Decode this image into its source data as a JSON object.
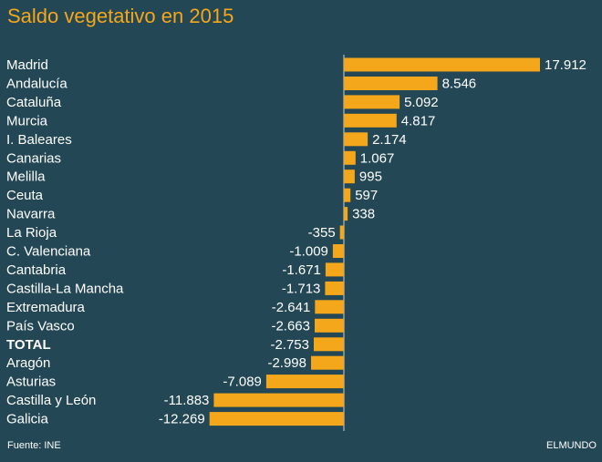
{
  "chart_data": {
    "type": "bar",
    "orientation": "horizontal",
    "title": "Saldo vegetativo en 2015",
    "categories": [
      "Madrid",
      "Andalucía",
      "Cataluña",
      "Murcia",
      "I. Baleares",
      "Canarias",
      "Melilla",
      "Ceuta",
      "Navarra",
      "La Rioja",
      "C. Valenciana",
      "Cantabria",
      "Castilla-La Mancha",
      "Extremadura",
      "País Vasco",
      "TOTAL",
      "Aragón",
      "Asturias",
      "Castilla y León",
      "Galicia"
    ],
    "values": [
      17912,
      8546,
      5092,
      4817,
      2174,
      1067,
      995,
      597,
      338,
      -355,
      -1009,
      -1671,
      -1713,
      -2641,
      -2663,
      -2753,
      -2998,
      -7089,
      -11883,
      -12269
    ],
    "value_labels": [
      "17.912",
      "8.546",
      "5.092",
      "4.817",
      "2.174",
      "1.067",
      "995",
      "597",
      "338",
      "-355",
      "-1.009",
      "-1.671",
      "-1.713",
      "-2.641",
      "-2.663",
      "-2.753",
      "-2.998",
      "-7.089",
      "-11.883",
      "-12.269"
    ],
    "bold_categories": [
      "TOTAL"
    ],
    "xlim": [
      -12269,
      17912
    ],
    "xlabel": "",
    "ylabel": "",
    "grid": false
  },
  "footer": {
    "source": "Fuente: INE",
    "brand": "ELMUNDO"
  },
  "colors": {
    "background": "#234754",
    "bar": "#f5a71b",
    "title": "#f5a71b",
    "text": "#ffffff",
    "axis": "#c9d3d6"
  }
}
